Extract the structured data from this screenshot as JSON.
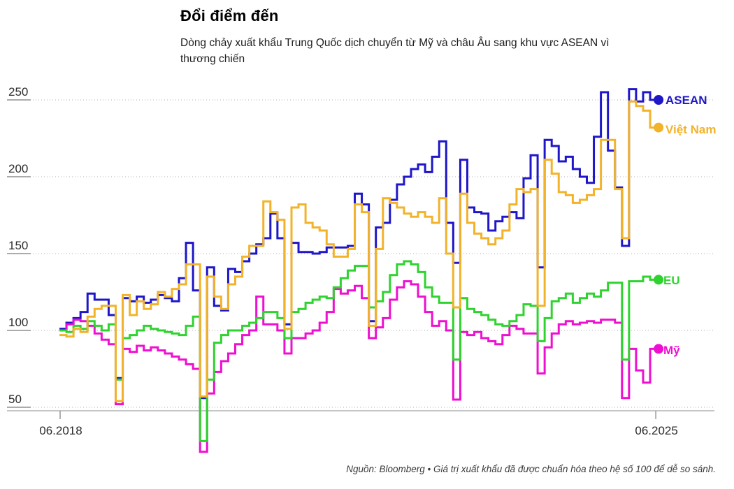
{
  "header": {
    "title": "Đổi điểm đến",
    "subtitle": "Dòng chảy xuất khẩu Trung Quốc dịch chuyển từ Mỹ và châu Âu sang khu vực ASEAN vì thương chiến"
  },
  "footer": {
    "source": "Nguồn: Bloomberg • Giá trị xuất khẩu đã được chuẩn hóa theo hệ số 100 để dễ so sánh."
  },
  "chart_data": {
    "type": "line",
    "style": "step",
    "title": "Đổi điểm đến",
    "x_frequency": "monthly",
    "x_start": "06.2018",
    "x_end": "06.2025",
    "x_tick_labels": [
      "06.2018",
      "06.2025"
    ],
    "y_ticks": [
      250,
      200,
      150,
      100,
      50
    ],
    "ylim": [
      50,
      250
    ],
    "grid": "horizontal-dotted",
    "legend_position": "end-of-line-labels",
    "note": "values normalized to 100",
    "series": [
      {
        "name": "ASEAN",
        "color": "#1e16c8",
        "values": [
          101,
          105,
          108,
          112,
          124,
          120,
          120,
          110,
          69,
          121,
          119,
          122,
          118,
          120,
          123,
          121,
          119,
          134,
          157,
          126,
          56,
          141,
          116,
          113,
          140,
          138,
          145,
          150,
          156,
          160,
          176,
          160,
          104,
          157,
          151,
          151,
          150,
          151,
          154,
          154,
          154,
          155,
          189,
          182,
          106,
          167,
          170,
          185,
          195,
          200,
          205,
          208,
          203,
          213,
          223,
          170,
          144,
          211,
          180,
          177,
          176,
          165,
          171,
          174,
          177,
          173,
          199,
          214,
          141,
          224,
          220,
          210,
          213,
          205,
          200,
          196,
          226,
          255,
          217,
          193,
          155,
          257,
          249,
          255,
          250
        ]
      },
      {
        "name": "Việt Nam",
        "color": "#f2b32b",
        "values": [
          97,
          96,
          101,
          99,
          109,
          114,
          116,
          116,
          54,
          123,
          110,
          119,
          114,
          117,
          125,
          122,
          127,
          130,
          143,
          143,
          57,
          135,
          122,
          114,
          130,
          135,
          148,
          155,
          155,
          184,
          177,
          172,
          101,
          180,
          182,
          170,
          167,
          165,
          156,
          148,
          148,
          153,
          182,
          177,
          103,
          153,
          186,
          183,
          180,
          176,
          174,
          177,
          174,
          170,
          186,
          150,
          115,
          189,
          170,
          163,
          160,
          156,
          160,
          165,
          182,
          192,
          190,
          192,
          116,
          211,
          202,
          190,
          188,
          183,
          185,
          188,
          192,
          224,
          224,
          192,
          160,
          249,
          246,
          243,
          232
        ]
      },
      {
        "name": "EU",
        "color": "#2fd32f",
        "values": [
          100,
          99,
          103,
          101,
          106,
          103,
          100,
          104,
          68,
          95,
          97,
          100,
          103,
          101,
          100,
          99,
          98,
          97,
          103,
          109,
          28,
          68,
          92,
          97,
          100,
          100,
          103,
          105,
          108,
          112,
          112,
          108,
          95,
          112,
          114,
          118,
          120,
          122,
          121,
          128,
          134,
          139,
          142,
          142,
          115,
          119,
          125,
          136,
          143,
          145,
          143,
          138,
          128,
          122,
          118,
          118,
          81,
          121,
          114,
          112,
          110,
          107,
          104,
          103,
          106,
          110,
          117,
          116,
          93,
          108,
          119,
          121,
          124,
          118,
          121,
          124,
          122,
          126,
          131,
          131,
          81,
          132,
          132,
          135,
          133
        ]
      },
      {
        "name": "Mỹ",
        "color": "#ee0fd0",
        "values": [
          100,
          104,
          107,
          106,
          103,
          98,
          94,
          91,
          52,
          88,
          86,
          90,
          87,
          89,
          87,
          85,
          83,
          81,
          78,
          75,
          21,
          59,
          73,
          80,
          85,
          91,
          97,
          100,
          122,
          104,
          104,
          100,
          85,
          95,
          95,
          98,
          100,
          105,
          112,
          127,
          124,
          126,
          129,
          121,
          95,
          102,
          108,
          120,
          128,
          132,
          130,
          122,
          112,
          103,
          106,
          100,
          55,
          99,
          97,
          99,
          95,
          93,
          91,
          97,
          103,
          101,
          98,
          98,
          72,
          89,
          98,
          104,
          106,
          104,
          105,
          106,
          105,
          107,
          107,
          105,
          56,
          88,
          74,
          66,
          88
        ]
      }
    ]
  }
}
